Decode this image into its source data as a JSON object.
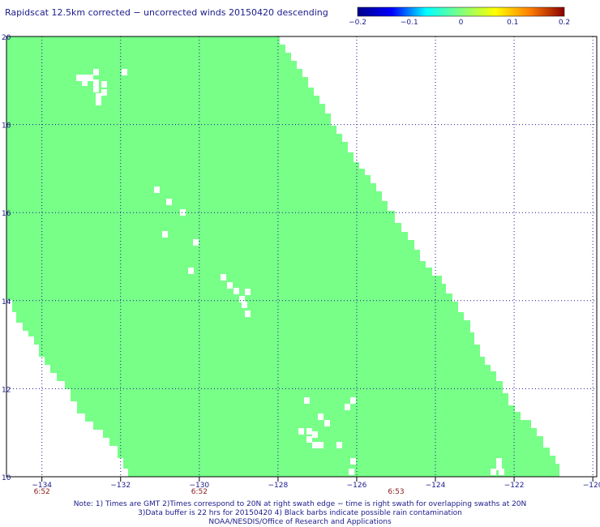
{
  "title": "Rapidscat 12.5km corrected − uncorrected winds 20150420 descending",
  "colorbar": {
    "ticks": [
      "−0.2",
      "−0.1",
      "0",
      "0.1",
      "0.2"
    ],
    "stops": [
      "#00008b",
      "#0000ff",
      "#00ffff",
      "#7fff7f",
      "#ffff00",
      "#ff7f00",
      "#8b0000"
    ]
  },
  "lon_ticks": [
    "−134",
    "−132",
    "−130",
    "−128",
    "−126",
    "−124",
    "−122",
    "−120"
  ],
  "lat_ticks": [
    "10",
    "12",
    "14",
    "16",
    "18",
    "20"
  ],
  "times": [
    {
      "label": "6:52",
      "lon": -134
    },
    {
      "label": "6:52",
      "lon": -130
    },
    {
      "label": "6:53",
      "lon": -125
    }
  ],
  "swath_color": "#77ff88",
  "grid_color": "#1a1a8c",
  "notes": [
    "Note: 1) Times are GMT 2)Times correspond to 20N at right swath edge − time is right swath for overlapping swaths at 20N",
    "3)Data buffer is 22 hrs for 20150420 4) Black barbs indicate possible rain contamination",
    "NOAA/NESDIS/Office of Research and Applications"
  ]
}
